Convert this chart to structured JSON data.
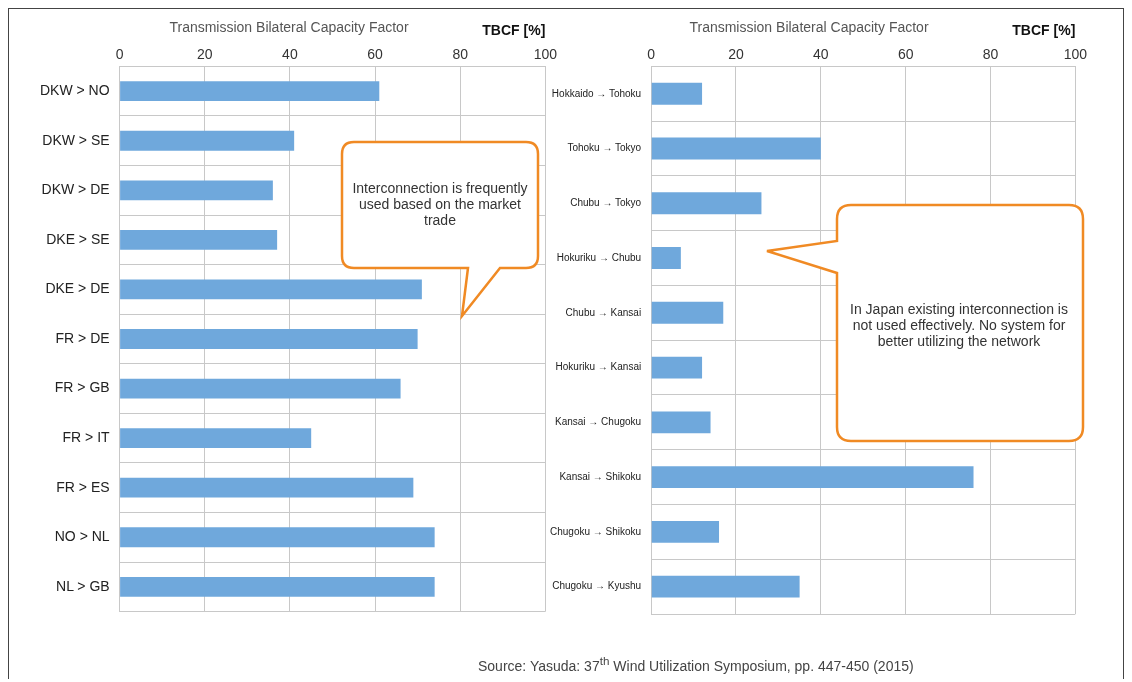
{
  "chart_data": [
    {
      "type": "bar",
      "orientation": "horizontal",
      "title": "Transmission Bilateral Capacity Factor",
      "xlabel": "TBCF [%]",
      "categories": [
        "DKW > NO",
        "DKW > SE",
        "DKW > DE",
        "DKE > SE",
        "DKE > DE",
        "FR > DE",
        "FR > GB",
        "FR > IT",
        "FR > ES",
        "NO > NL",
        "NL > GB"
      ],
      "values": [
        61,
        41,
        36,
        37,
        71,
        70,
        66,
        45,
        69,
        74,
        74
      ],
      "color": "#6fa8dc",
      "xlim": [
        0,
        100
      ],
      "xticks": [
        0,
        20,
        40,
        60,
        80,
        100
      ],
      "grid": true,
      "annotations": [
        "Interconnection is frequently used based on the market trade"
      ]
    },
    {
      "type": "bar",
      "orientation": "horizontal",
      "title": "Transmission Bilateral Capacity Factor",
      "xlabel": "TBCF [%]",
      "categories": [
        "Hokkaido → Tohoku",
        "Tohoku → Tokyo",
        "Chubu → Tokyo",
        "Hokuriku → Chubu",
        "Chubu → Kansai",
        "Hokuriku → Kansai",
        "Kansai → Chugoku",
        "Kansai → Shikoku",
        "Chugoku → Shikoku",
        "Chugoku → Kyushu"
      ],
      "values": [
        12,
        40,
        26,
        7,
        17,
        12,
        14,
        76,
        16,
        35
      ],
      "color": "#6fa8dc",
      "xlim": [
        0,
        100
      ],
      "xticks": [
        0,
        20,
        40,
        60,
        80,
        100
      ],
      "grid": true,
      "annotations": [
        "In Japan existing interconnection is not used effectively. No system for better utilizing the network",
        "Source: Yasuda: 37$^{th}$ Wind Utilization Symposium, pp. 447-450 (2015)"
      ]
    }
  ]
}
